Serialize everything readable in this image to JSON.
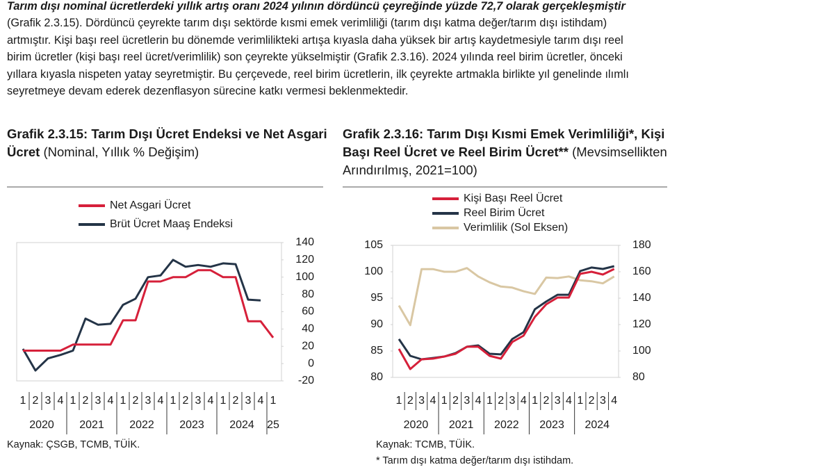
{
  "text": {
    "lead": "Tarım dışı nominal ücretlerdeki yıllık artış oranı 2024 yılının dördüncü çeyreğinde yüzde 72,7 olarak gerçekleşmiştir",
    "body": " (Grafik 2.3.15). Dördüncü çeyrekte tarım dışı sektörde kısmi emek verimliliği (tarım dışı katma değer/tarım dışı istihdam) artmıştır. Kişi başı reel ücretlerin bu dönemde verimlilikteki artışa kıyasla daha yüksek bir artış kaydetmesiyle tarım dışı reel birim ücretler (kişi başı reel ücret/verimlilik) son çeyrekte yükselmiştir (Grafik 2.3.16). 2024 yılında reel birim ücretler, önceki yıllara kıyasla nispeten yatay seyretmiştir. Bu çerçevede, reel birim ücretlerin, ilk çeyrekte artmakla birlikte yıl genelinde ılımlı seyretmeye devam ederek dezenflasyon sürecine katkı vermesi beklenmektedir."
  },
  "chart_data": [
    {
      "type": "line",
      "title": "Grafik 2.3.15: Tarım Dışı Ücret Endeksi ve Net Asgari Ücret",
      "subtitle": "(Nominal, Yıllık % Değişim)",
      "categories": [
        "1",
        "2",
        "3",
        "4",
        "1",
        "2",
        "3",
        "4",
        "1",
        "2",
        "3",
        "4",
        "1",
        "2",
        "3",
        "4",
        "1",
        "2",
        "3",
        "4",
        "1"
      ],
      "x_groups": [
        "2020",
        "2021",
        "2022",
        "2023",
        "2024",
        "25"
      ],
      "series": [
        {
          "name": "Net Asgari Ücret",
          "color": "#d6203a",
          "values": [
            15,
            15,
            15,
            15,
            22,
            22,
            22,
            22,
            50,
            50,
            95,
            95,
            100,
            100,
            108,
            108,
            100,
            100,
            49,
            49,
            30
          ]
        },
        {
          "name": "Brüt Ücret Maaş Endeksi",
          "color": "#243447",
          "values": [
            17,
            -8,
            6,
            10,
            15,
            52,
            45,
            46,
            68,
            75,
            100,
            102,
            120,
            112,
            114,
            112,
            116,
            115,
            74,
            73,
            null
          ]
        }
      ],
      "y_axis_position": "right",
      "ylim": [
        -20,
        140
      ],
      "yticks": [
        -20,
        0,
        20,
        40,
        60,
        80,
        100,
        120,
        140
      ],
      "source": "Kaynak: ÇSGB, TCMB, TÜİK."
    },
    {
      "type": "line",
      "title": "Grafik 2.3.16: Tarım Dışı Kısmi Emek Verimliliği*, Kişi Başı Reel Ücret ve Reel Birim Ücret**",
      "subtitle": "(Mevsimsellikten Arındırılmış, 2021=100)",
      "categories": [
        "1",
        "2",
        "3",
        "4",
        "1",
        "2",
        "3",
        "4",
        "1",
        "2",
        "3",
        "4",
        "1",
        "2",
        "3",
        "4",
        "1",
        "2",
        "3",
        "4"
      ],
      "x_groups": [
        "2020",
        "2021",
        "2022",
        "2023",
        "2024"
      ],
      "series": [
        {
          "name": "Kişi Başı Reel Ücret",
          "color": "#d6203a",
          "axis": "y2",
          "values": [
            101.6,
            86.3,
            93.7,
            94.2,
            95.8,
            97.9,
            103.2,
            103.2,
            96.3,
            94.2,
            106.8,
            111.6,
            125.8,
            135.3,
            140.5,
            140.5,
            158.4,
            160,
            157.9,
            162.1
          ]
        },
        {
          "name": "Reel Birim Ücret",
          "color": "#243447",
          "axis": "y2",
          "values": [
            109,
            96.3,
            93.7,
            94.7,
            95.8,
            98.4,
            103.2,
            104.2,
            97.9,
            97.4,
            109,
            114.2,
            131.6,
            137.4,
            142.6,
            142.6,
            160.5,
            163.2,
            162.1,
            164.2
          ]
        },
        {
          "name": "Verimlilik (Sol Eksen)",
          "color": "#d9c7a3",
          "values": [
            93.6,
            89.9,
            100.5,
            100.5,
            100,
            100,
            100.7,
            99.1,
            98,
            97.2,
            97,
            96.3,
            95.8,
            98.9,
            98.8,
            99.1,
            98.4,
            98.2,
            97.8,
            99.1
          ]
        }
      ],
      "ylim": [
        80,
        105
      ],
      "yticks": [
        80,
        85,
        90,
        95,
        100,
        105
      ],
      "y2lim": [
        80,
        180
      ],
      "y2ticks": [
        80,
        100,
        120,
        140,
        160,
        180
      ],
      "source": "Kaynak: TCMB, TÜİK.",
      "note": "* Tarım dışı katma değer/tarım dışı istihdam."
    }
  ]
}
